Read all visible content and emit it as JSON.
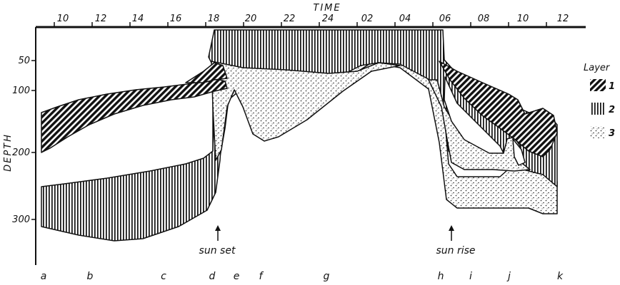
{
  "diagram": {
    "x_axis_title": "TIME",
    "y_axis_title": "DEPTH",
    "time_ticks": [
      "10",
      "12",
      "14",
      "16",
      "18",
      "20",
      "22",
      "24",
      "02",
      "04",
      "06",
      "08",
      "10",
      "12"
    ],
    "depth_ticks": [
      "50",
      "100",
      "200",
      "300"
    ],
    "annotations": {
      "sunset": "sun set",
      "sunrise": "sun rise"
    },
    "phase_letters": [
      "a",
      "b",
      "c",
      "d",
      "e",
      "f",
      "g",
      "h",
      "i",
      "j",
      "k"
    ],
    "legend": {
      "title": "Layer",
      "items": [
        {
          "label": "1",
          "pattern": "diagonal-hatch"
        },
        {
          "label": "2",
          "pattern": "vertical-hatch"
        },
        {
          "label": "3",
          "pattern": "stipple"
        }
      ]
    },
    "colors": {
      "ink": "#111111",
      "background": "#ffffff"
    }
  }
}
